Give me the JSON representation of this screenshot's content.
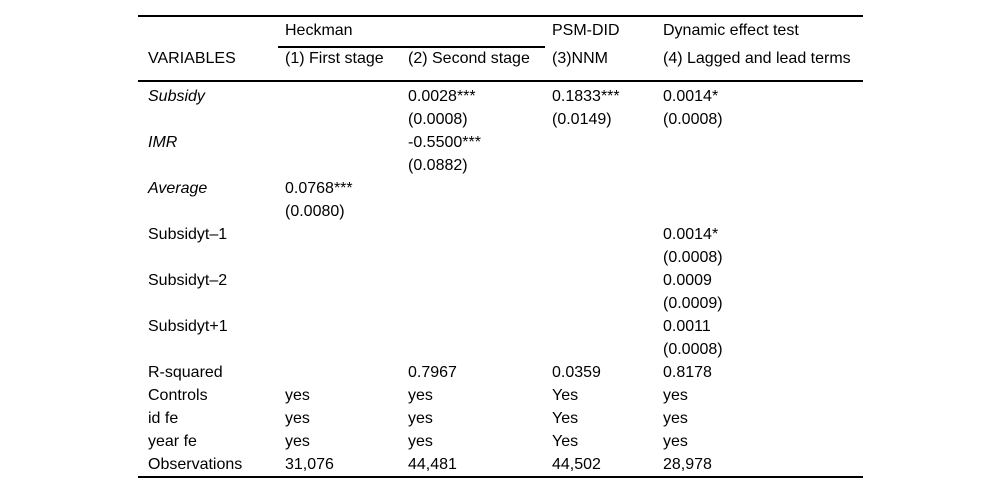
{
  "page": {
    "background": "#ffffff",
    "text_color": "#000000",
    "rule_color": "#000000"
  },
  "table": {
    "header": {
      "groups": [
        {
          "label": "Heckman"
        },
        {
          "label": "PSM-DID"
        },
        {
          "label": "Dynamic effect test"
        }
      ],
      "columns": [
        "VARIABLES",
        "(1) First stage",
        "(2) Second stage",
        "(3)NNM",
        "(4) Lagged and lead terms"
      ]
    },
    "rows": [
      {
        "label": "Subsidy",
        "c1": "",
        "c2": "0.0028***",
        "c3": "0.1833***",
        "c4": "0.0014*"
      },
      {
        "label": "",
        "c1": "",
        "c2": "(0.0008)",
        "c3": "(0.0149)",
        "c4": "(0.0008)"
      },
      {
        "label": "IMR",
        "c1": "",
        "c2": "-0.5500***",
        "c3": "",
        "c4": ""
      },
      {
        "label": "",
        "c1": "",
        "c2": "(0.0882)",
        "c3": "",
        "c4": ""
      },
      {
        "label": "Average",
        "c1": "0.0768***",
        "c2": "",
        "c3": "",
        "c4": ""
      },
      {
        "label": "",
        "c1": "(0.0080)",
        "c2": "",
        "c3": "",
        "c4": ""
      },
      {
        "label": "Subsidyt–1",
        "c1": "",
        "c2": "",
        "c3": "",
        "c4": "0.0014*"
      },
      {
        "label": "",
        "c1": "",
        "c2": "",
        "c3": "",
        "c4": "(0.0008)"
      },
      {
        "label": "Subsidyt–2",
        "c1": "",
        "c2": "",
        "c3": "",
        "c4": "0.0009"
      },
      {
        "label": "",
        "c1": "",
        "c2": "",
        "c3": "",
        "c4": "(0.0009)"
      },
      {
        "label": "Subsidyt+1",
        "c1": "",
        "c2": "",
        "c3": "",
        "c4": "0.0011"
      },
      {
        "label": "",
        "c1": "",
        "c2": "",
        "c3": "",
        "c4": "(0.0008)"
      },
      {
        "label": "R-squared",
        "c1": "",
        "c2": "0.7967",
        "c3": "0.0359",
        "c4": "0.8178"
      },
      {
        "label": "Controls",
        "c1": "yes",
        "c2": "yes",
        "c3": "Yes",
        "c4": "yes"
      },
      {
        "label": "id fe",
        "c1": "yes",
        "c2": "yes",
        "c3": "Yes",
        "c4": "yes"
      },
      {
        "label": "year fe",
        "c1": "yes",
        "c2": "yes",
        "c3": "Yes",
        "c4": "yes"
      },
      {
        "label": "Observations",
        "c1": "31,076",
        "c2": "44,481",
        "c3": "44,502",
        "c4": "28,978"
      }
    ]
  }
}
